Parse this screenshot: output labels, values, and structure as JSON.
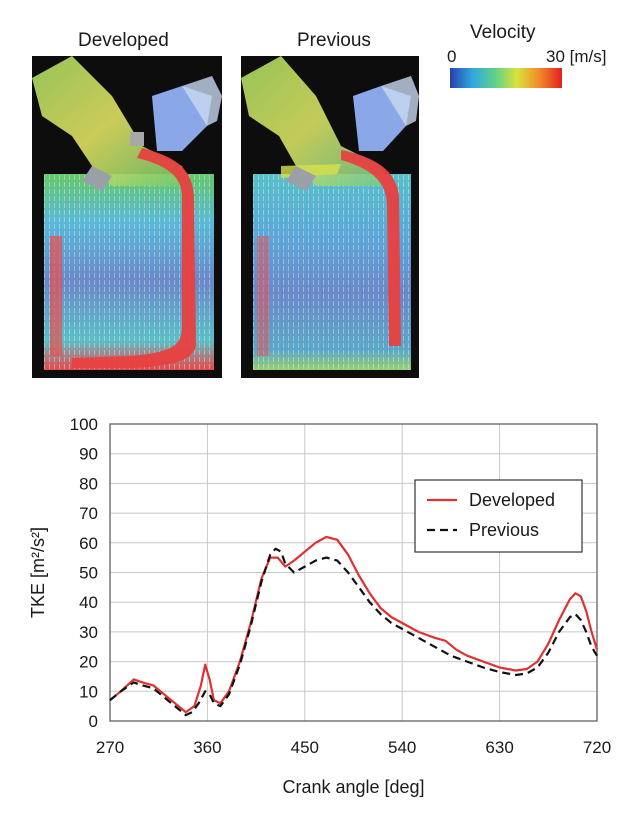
{
  "figure": {
    "panels": [
      {
        "title": "Developed"
      },
      {
        "title": "Previous"
      }
    ],
    "colorbar": {
      "title": "Velocity",
      "min_label": "0",
      "max_label": "30 [m/s]",
      "colors": [
        "#2a3fb0",
        "#2fa8e0",
        "#5fd08a",
        "#d8e23a",
        "#f08a2a",
        "#e02020"
      ]
    }
  },
  "chart_data": {
    "type": "line",
    "xlabel": "Crank angle [deg]",
    "ylabel": "TKE [m²/s²]",
    "xlim": [
      270,
      720
    ],
    "ylim": [
      0,
      100
    ],
    "xticks": [
      270,
      360,
      450,
      540,
      630,
      720
    ],
    "yticks": [
      0,
      10,
      20,
      30,
      40,
      50,
      60,
      70,
      80,
      90,
      100
    ],
    "grid": true,
    "legend": "top-right",
    "series": [
      {
        "name": "Developed",
        "color": "#e03030",
        "dash": "solid",
        "x": [
          270,
          280,
          292,
          300,
          310,
          320,
          330,
          340,
          348,
          354,
          358,
          362,
          366,
          372,
          380,
          390,
          400,
          410,
          418,
          425,
          432,
          440,
          450,
          460,
          470,
          480,
          490,
          500,
          510,
          520,
          530,
          540,
          555,
          570,
          580,
          590,
          600,
          615,
          630,
          645,
          655,
          665,
          675,
          685,
          695,
          700,
          705,
          710,
          715,
          720
        ],
        "y": [
          7,
          10,
          14,
          13,
          12,
          9,
          6,
          3,
          5,
          12,
          19,
          14,
          7,
          6,
          10,
          20,
          33,
          48,
          55,
          55,
          52,
          54,
          57,
          60,
          62,
          61,
          56,
          49,
          43,
          38,
          35,
          33,
          30,
          28,
          27,
          24,
          22,
          20,
          18,
          17,
          17.5,
          20,
          26,
          34,
          41,
          43,
          42,
          37,
          30,
          24
        ]
      },
      {
        "name": "Previous",
        "color": "#111111",
        "dash": "dashed",
        "x": [
          270,
          280,
          292,
          300,
          310,
          320,
          330,
          340,
          346,
          352,
          358,
          362,
          366,
          372,
          380,
          390,
          400,
          410,
          418,
          423,
          428,
          432,
          440,
          450,
          460,
          470,
          480,
          490,
          500,
          510,
          520,
          530,
          540,
          555,
          570,
          585,
          600,
          615,
          630,
          645,
          655,
          665,
          675,
          685,
          695,
          700,
          705,
          710,
          715,
          720
        ],
        "y": [
          7,
          10,
          13,
          12,
          11,
          8,
          5,
          2,
          3,
          6,
          10,
          9,
          6,
          5,
          9,
          19,
          32,
          47,
          56,
          58,
          57,
          53,
          50,
          52,
          54,
          55,
          54,
          50,
          45,
          40,
          36,
          33,
          31,
          28,
          25,
          22,
          20,
          18,
          16.5,
          15.5,
          16,
          18,
          23,
          30,
          35,
          36,
          34,
          30,
          25,
          22
        ]
      }
    ]
  }
}
